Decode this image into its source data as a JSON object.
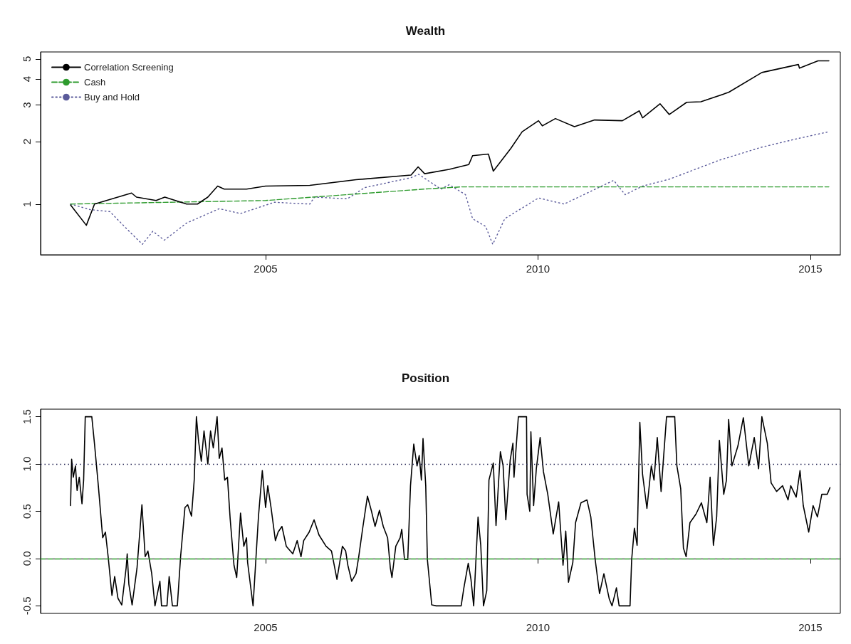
{
  "chart_data": [
    {
      "type": "line",
      "title": "Wealth",
      "legend": "top left",
      "log": "y",
      "marker": "none",
      "xlim": [
        2000.87,
        2015.55
      ],
      "xticks": [
        2005,
        2010,
        2015
      ],
      "ylim": [
        0.57,
        5.4
      ],
      "yticks": [
        1,
        2,
        3,
        4,
        5
      ],
      "series": [
        {
          "name": "Correlation Screening",
          "color": "#000000",
          "line_style": "solid",
          "x": [
            2001.42,
            2001.71,
            2001.86,
            2002.54,
            2002.63,
            2002.99,
            2003.15,
            2003.55,
            2003.75,
            2003.94,
            2004.12,
            2004.24,
            2004.65,
            2005.0,
            2005.81,
            2006.66,
            2007.67,
            2007.8,
            2007.92,
            2008.37,
            2008.73,
            2008.8,
            2009.09,
            2009.18,
            2009.5,
            2009.71,
            2010.01,
            2010.08,
            2010.32,
            2010.67,
            2011.04,
            2011.55,
            2011.86,
            2011.92,
            2012.24,
            2012.41,
            2012.73,
            2012.99,
            2013.5,
            2014.11,
            2014.78,
            2014.8,
            2015.14,
            2015.34
          ],
          "values": [
            0.99,
            0.79,
            1.0,
            1.13,
            1.08,
            1.04,
            1.08,
            1.0,
            1.0,
            1.08,
            1.22,
            1.18,
            1.18,
            1.22,
            1.23,
            1.31,
            1.38,
            1.51,
            1.4,
            1.47,
            1.55,
            1.71,
            1.74,
            1.44,
            1.85,
            2.23,
            2.52,
            2.38,
            2.58,
            2.36,
            2.54,
            2.52,
            2.81,
            2.6,
            3.04,
            2.7,
            3.09,
            3.11,
            3.45,
            4.3,
            4.7,
            4.51,
            4.89,
            4.89
          ]
        },
        {
          "name": "Cash",
          "color": "#2e9b2e",
          "line_style": "dashed",
          "x": [
            2001.42,
            2005.0,
            2007.9,
            2008.6,
            2015.34
          ],
          "values": [
            1.0,
            1.04,
            1.18,
            1.21,
            1.21
          ]
        },
        {
          "name": "Buy and Hold",
          "color": "#5a5a9a",
          "line_style": "dotted",
          "x": [
            2001.42,
            2001.78,
            2002.14,
            2002.54,
            2002.74,
            2002.93,
            2003.14,
            2003.55,
            2004.15,
            2004.54,
            2005.16,
            2005.81,
            2005.9,
            2006.5,
            2006.82,
            2007.67,
            2007.81,
            2008.22,
            2008.37,
            2008.67,
            2008.8,
            2009.04,
            2009.17,
            2009.39,
            2010.01,
            2010.48,
            2011.39,
            2011.6,
            2011.92,
            2012.42,
            2013.34,
            2014.11,
            2014.78,
            2015.34
          ],
          "values": [
            1.0,
            0.94,
            0.92,
            0.72,
            0.64,
            0.74,
            0.67,
            0.81,
            0.95,
            0.9,
            1.02,
            1.0,
            1.08,
            1.06,
            1.2,
            1.34,
            1.39,
            1.18,
            1.24,
            1.11,
            0.85,
            0.78,
            0.64,
            0.85,
            1.07,
            1.0,
            1.3,
            1.11,
            1.22,
            1.32,
            1.63,
            1.88,
            2.07,
            2.23
          ]
        }
      ]
    },
    {
      "type": "line",
      "title": "Position",
      "marker": "none",
      "xlim": [
        2000.87,
        2015.55
      ],
      "xticks": [
        2005,
        2010,
        2015
      ],
      "ylim": [
        -0.58,
        1.58
      ],
      "yticks": [
        {
          "value": -0.5,
          "label": "-0.5"
        },
        {
          "value": 0,
          "label": "0.0"
        },
        {
          "value": 0.5,
          "label": "0.5"
        },
        {
          "value": 1,
          "label": "1.0"
        },
        {
          "value": 1.5,
          "label": "1.5"
        }
      ],
      "ref_lines": [
        {
          "axis": "y",
          "value": 1,
          "color": "#202050",
          "line_style": "dotted"
        },
        {
          "axis": "y",
          "value": 0,
          "color": "#2e9b2e",
          "line_style": "dashed"
        }
      ],
      "series": [
        {
          "color": "#000000",
          "line_style": "solid",
          "x": [
            2001.42,
            2001.44,
            2001.47,
            2001.51,
            2001.54,
            2001.58,
            2001.63,
            2001.66,
            2001.69,
            2001.81,
            2001.86,
            2001.93,
            2002.01,
            2002.06,
            2002.11,
            2002.18,
            2002.23,
            2002.29,
            2002.36,
            2002.44,
            2002.46,
            2002.49,
            2002.55,
            2002.64,
            2002.73,
            2002.79,
            2002.84,
            2002.91,
            2002.97,
            2003.06,
            2003.09,
            2003.19,
            2003.23,
            2003.29,
            2003.38,
            2003.44,
            2003.52,
            2003.57,
            2003.64,
            2003.69,
            2003.73,
            2003.77,
            2003.82,
            2003.87,
            2003.94,
            2003.99,
            2004.04,
            2004.11,
            2004.15,
            2004.2,
            2004.25,
            2004.3,
            2004.35,
            2004.42,
            2004.47,
            2004.54,
            2004.6,
            2004.65,
            2004.67,
            2004.77,
            2004.87,
            2004.94,
            2005.0,
            2005.04,
            2005.1,
            2005.18,
            2005.23,
            2005.3,
            2005.38,
            2005.5,
            2005.58,
            2005.65,
            2005.7,
            2005.8,
            2005.89,
            2005.98,
            2006.11,
            2006.21,
            2006.31,
            2006.41,
            2006.47,
            2006.51,
            2006.58,
            2006.66,
            2006.71,
            2006.78,
            2006.87,
            2006.94,
            2007.01,
            2007.09,
            2007.16,
            2007.24,
            2007.29,
            2007.32,
            2007.39,
            2007.47,
            2007.5,
            2007.55,
            2007.61,
            2007.66,
            2007.72,
            2007.78,
            2007.82,
            2007.86,
            2007.89,
            2007.94,
            2007.97,
            2008.05,
            2008.13,
            2008.59,
            2008.64,
            2008.72,
            2008.77,
            2008.82,
            2008.9,
            2008.95,
            2009.0,
            2009.06,
            2009.1,
            2009.18,
            2009.23,
            2009.31,
            2009.36,
            2009.41,
            2009.49,
            2009.54,
            2009.56,
            2009.64,
            2009.79,
            2009.8,
            2009.85,
            2009.87,
            2009.92,
            2009.97,
            2010.04,
            2010.1,
            2010.18,
            2010.28,
            2010.38,
            2010.46,
            2010.51,
            2010.56,
            2010.64,
            2010.69,
            2010.79,
            2010.9,
            2010.97,
            2011.05,
            2011.13,
            2011.21,
            2011.31,
            2011.36,
            2011.44,
            2011.49,
            2011.69,
            2011.72,
            2011.77,
            2011.82,
            2011.87,
            2011.92,
            2012.0,
            2012.08,
            2012.13,
            2012.19,
            2012.26,
            2012.36,
            2012.51,
            2012.55,
            2012.62,
            2012.67,
            2012.72,
            2012.79,
            2012.9,
            2013.0,
            2013.1,
            2013.16,
            2013.22,
            2013.28,
            2013.33,
            2013.41,
            2013.46,
            2013.5,
            2013.56,
            2013.67,
            2013.77,
            2013.87,
            2013.97,
            2014.05,
            2014.11,
            2014.21,
            2014.28,
            2014.38,
            2014.49,
            2014.59,
            2014.64,
            2014.74,
            2014.81,
            2014.87,
            2014.97,
            2015.05,
            2015.13,
            2015.21,
            2015.31,
            2015.36
          ],
          "values": [
            0.56,
            1.05,
            0.86,
            0.98,
            0.72,
            0.86,
            0.58,
            0.83,
            1.5,
            1.5,
            1.21,
            0.77,
            0.22,
            0.28,
            0.02,
            -0.39,
            -0.19,
            -0.42,
            -0.49,
            -0.1,
            0.05,
            -0.27,
            -0.49,
            -0.1,
            0.57,
            0.02,
            0.08,
            -0.16,
            -0.5,
            -0.24,
            -0.5,
            -0.5,
            -0.19,
            -0.5,
            -0.5,
            0.02,
            0.54,
            0.57,
            0.45,
            0.83,
            1.5,
            1.24,
            1.03,
            1.35,
            1.0,
            1.35,
            1.17,
            1.5,
            1.06,
            1.17,
            0.83,
            0.86,
            0.42,
            -0.07,
            -0.2,
            0.48,
            0.13,
            0.22,
            -0.04,
            -0.5,
            0.45,
            0.93,
            0.54,
            0.77,
            0.54,
            0.19,
            0.28,
            0.34,
            0.13,
            0.05,
            0.19,
            0.02,
            0.19,
            0.28,
            0.41,
            0.25,
            0.13,
            0.08,
            -0.22,
            0.13,
            0.08,
            -0.07,
            -0.24,
            -0.16,
            0.02,
            0.31,
            0.66,
            0.51,
            0.34,
            0.51,
            0.34,
            0.22,
            -0.1,
            -0.2,
            0.13,
            0.22,
            0.31,
            -0.01,
            -0.01,
            0.77,
            1.21,
            0.98,
            1.09,
            0.83,
            1.27,
            0.77,
            -0.01,
            -0.49,
            -0.5,
            -0.5,
            -0.31,
            -0.05,
            -0.22,
            -0.5,
            0.44,
            0.14,
            -0.5,
            -0.34,
            0.83,
            1.01,
            0.35,
            1.13,
            0.98,
            0.41,
            1.04,
            1.22,
            0.86,
            1.5,
            1.5,
            0.68,
            0.5,
            1.34,
            0.56,
            0.95,
            1.28,
            0.92,
            0.68,
            0.26,
            0.6,
            -0.07,
            0.29,
            -0.25,
            -0.04,
            0.38,
            0.59,
            0.62,
            0.44,
            -0.01,
            -0.37,
            -0.16,
            -0.43,
            -0.5,
            -0.31,
            -0.5,
            -0.5,
            -0.01,
            0.32,
            0.14,
            1.44,
            0.89,
            0.53,
            0.98,
            0.83,
            1.28,
            0.71,
            1.5,
            1.5,
            0.98,
            0.74,
            0.11,
            0.02,
            0.38,
            0.47,
            0.59,
            0.38,
            0.86,
            0.14,
            0.44,
            1.25,
            0.68,
            0.83,
            1.47,
            0.98,
            1.19,
            1.49,
            0.98,
            1.28,
            0.95,
            1.5,
            1.22,
            0.8,
            0.71,
            0.77,
            0.62,
            0.77,
            0.65,
            0.93,
            0.56,
            0.28,
            0.56,
            0.44,
            0.68,
            0.68,
            0.75
          ]
        }
      ]
    }
  ]
}
